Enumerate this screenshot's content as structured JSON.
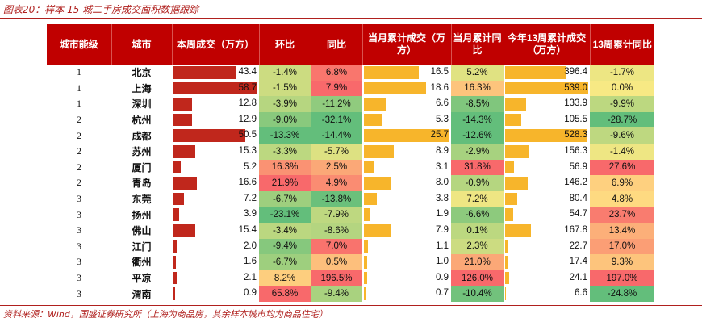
{
  "title": "图表20：样本 15 城二手房成交面积数据跟踪",
  "headers": {
    "tier": "城市能级",
    "city": "城市",
    "week_vol": "本周成交（万方）",
    "wow": "环比",
    "yoy": "同比",
    "month_cum": "当月累计成交（万方）",
    "month_yoy": "当月累计同比",
    "ytd_cum": "今年13周累计成交（万方）",
    "ytd_yoy": "13周累计同比"
  },
  "rows": [
    {
      "tier": "1",
      "city": "北京",
      "week": "43.4",
      "wow": "-1.4%",
      "yoy": "6.8%",
      "month": "16.5",
      "month_yoy": "5.2%",
      "ytd": "396.4",
      "ytd_yoy": "-1.7%"
    },
    {
      "tier": "1",
      "city": "上海",
      "week": "58.7",
      "wow": "-1.5%",
      "yoy": "7.9%",
      "month": "18.6",
      "month_yoy": "16.3%",
      "ytd": "539.0",
      "ytd_yoy": "0.0%"
    },
    {
      "tier": "1",
      "city": "深圳",
      "week": "12.8",
      "wow": "-3.9%",
      "yoy": "-11.2%",
      "month": "6.6",
      "month_yoy": "-8.5%",
      "ytd": "133.9",
      "ytd_yoy": "-9.9%"
    },
    {
      "tier": "2",
      "city": "杭州",
      "week": "12.9",
      "wow": "-9.0%",
      "yoy": "-32.1%",
      "month": "5.3",
      "month_yoy": "-14.3%",
      "ytd": "105.5",
      "ytd_yoy": "-28.7%"
    },
    {
      "tier": "2",
      "city": "成都",
      "week": "50.5",
      "wow": "-13.3%",
      "yoy": "-14.4%",
      "month": "25.7",
      "month_yoy": "-12.6%",
      "ytd": "528.3",
      "ytd_yoy": "-9.6%"
    },
    {
      "tier": "2",
      "city": "苏州",
      "week": "15.3",
      "wow": "-3.3%",
      "yoy": "-5.7%",
      "month": "8.9",
      "month_yoy": "-2.9%",
      "ytd": "156.3",
      "ytd_yoy": "-1.4%"
    },
    {
      "tier": "2",
      "city": "厦门",
      "week": "5.2",
      "wow": "16.3%",
      "yoy": "2.5%",
      "month": "3.1",
      "month_yoy": "31.8%",
      "ytd": "56.9",
      "ytd_yoy": "27.6%"
    },
    {
      "tier": "2",
      "city": "青岛",
      "week": "16.6",
      "wow": "21.9%",
      "yoy": "4.9%",
      "month": "8.0",
      "month_yoy": "-0.9%",
      "ytd": "146.2",
      "ytd_yoy": "6.9%"
    },
    {
      "tier": "3",
      "city": "东莞",
      "week": "7.2",
      "wow": "-6.7%",
      "yoy": "-13.8%",
      "month": "3.8",
      "month_yoy": "7.2%",
      "ytd": "80.4",
      "ytd_yoy": "4.8%"
    },
    {
      "tier": "3",
      "city": "扬州",
      "week": "3.9",
      "wow": "-23.1%",
      "yoy": "-7.9%",
      "month": "1.9",
      "month_yoy": "-6.6%",
      "ytd": "54.7",
      "ytd_yoy": "23.7%"
    },
    {
      "tier": "3",
      "city": "佛山",
      "week": "15.4",
      "wow": "-3.4%",
      "yoy": "-8.6%",
      "month": "7.9",
      "month_yoy": "0.1%",
      "ytd": "167.8",
      "ytd_yoy": "13.4%"
    },
    {
      "tier": "3",
      "city": "江门",
      "week": "2.0",
      "wow": "-9.4%",
      "yoy": "7.0%",
      "month": "1.1",
      "month_yoy": "2.3%",
      "ytd": "22.7",
      "ytd_yoy": "17.0%"
    },
    {
      "tier": "3",
      "city": "衢州",
      "week": "1.6",
      "wow": "-6.7%",
      "yoy": "0.5%",
      "month": "1.0",
      "month_yoy": "21.0%",
      "ytd": "17.4",
      "ytd_yoy": "9.3%"
    },
    {
      "tier": "3",
      "city": "平凉",
      "week": "2.1",
      "wow": "8.2%",
      "yoy": "196.5%",
      "month": "0.9",
      "month_yoy": "126.0%",
      "ytd": "24.1",
      "ytd_yoy": "197.0%"
    },
    {
      "tier": "3",
      "city": "渭南",
      "week": "0.9",
      "wow": "65.8%",
      "yoy": "-9.4%",
      "month": "0.7",
      "month_yoy": "-10.4%",
      "ytd": "6.6",
      "ytd_yoy": "-24.8%"
    }
  ],
  "source": "资料来源：Wind，国盛证券研究所（上海为商品房，其余样本城市均为商品住宅）",
  "colors": {
    "header_bg": "#c00000",
    "title": "#b0201e",
    "week_bar": "#c0271c",
    "month_bar": "#f7b52b",
    "ytd_bar": "#f7b52b",
    "heat_low": "#63be7b",
    "heat_mid": "#ffeb84",
    "heat_high": "#f8696b"
  }
}
